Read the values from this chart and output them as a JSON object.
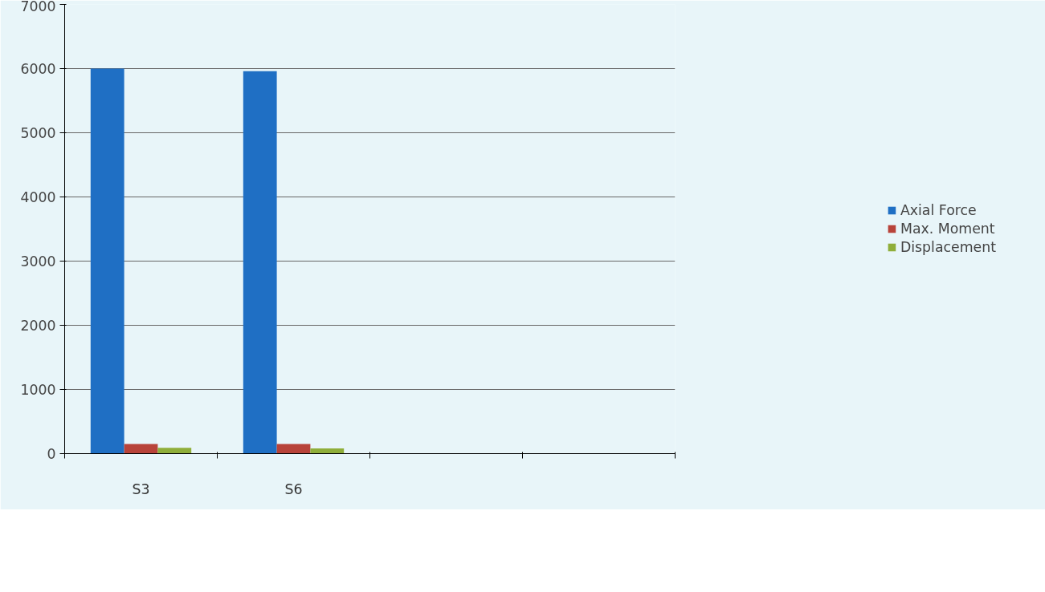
{
  "chart_data": {
    "type": "bar",
    "categories": [
      "S3",
      "S6",
      null,
      null
    ],
    "series": [
      {
        "name": "Axial Force",
        "color": "#1f6fc4",
        "values": [
          6000,
          5960,
          null,
          null
        ]
      },
      {
        "name": "Max. Moment",
        "color": "#b8433a",
        "values": [
          150,
          150,
          null,
          null
        ]
      },
      {
        "name": "Displacement",
        "color": "#8fae3a",
        "values": [
          90,
          80,
          null,
          null
        ]
      }
    ],
    "ylim": [
      0,
      7000
    ],
    "yticks": [
      0,
      1000,
      2000,
      3000,
      4000,
      5000,
      6000,
      7000
    ],
    "grid": "y",
    "legend": "right"
  }
}
